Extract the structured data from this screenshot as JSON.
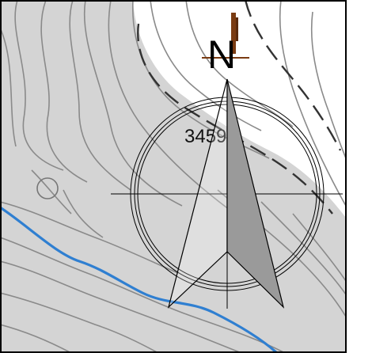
{
  "map": {
    "north_label": "N",
    "elevation_label": "3459",
    "colors": {
      "background": "#ffffff",
      "terrain_fill": "#d4d4d4",
      "contour_line": "#8a8a8a",
      "index_contour": "#555555",
      "river": "#2f7fd1",
      "frame": "#000000",
      "compass_dark": "#9a9a9a",
      "compass_light": "#ffffff",
      "compass_stroke": "#000000",
      "marker": "#7a3b12"
    },
    "icons": [
      "north-arrow-icon",
      "compass-rose-icon",
      "survey-marker-icon"
    ]
  }
}
